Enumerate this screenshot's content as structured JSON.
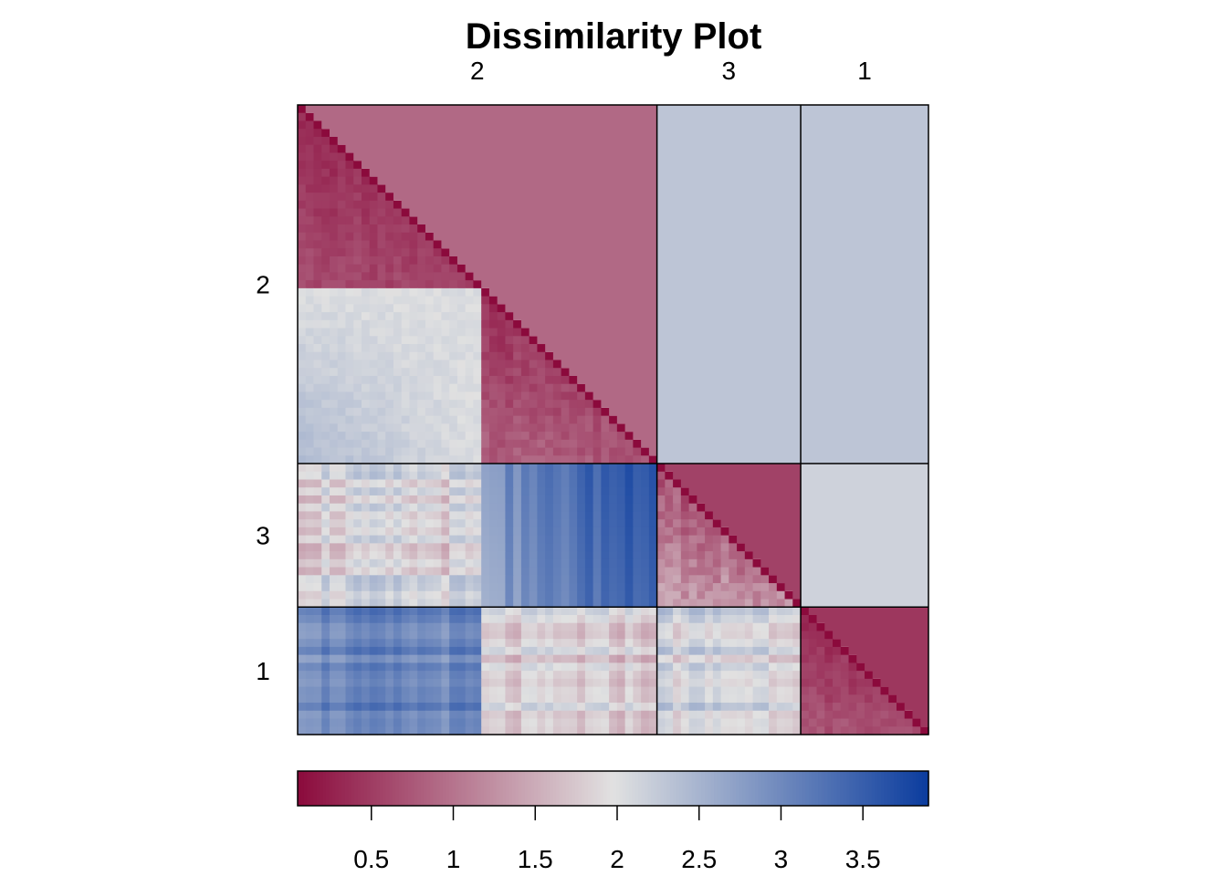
{
  "chart_data": {
    "type": "heatmap",
    "title": "Dissimilarity Plot",
    "cluster_order": [
      "2",
      "3",
      "1"
    ],
    "cluster_sizes": [
      45,
      18,
      16
    ],
    "top_labels": [
      "2",
      "3",
      "1"
    ],
    "left_labels": [
      "2",
      "3",
      "1"
    ],
    "subclusters_in_cluster_2": [
      23,
      22
    ],
    "lower_triangle_cell_estimates": {
      "2a_2a": [
        0.1,
        0.7
      ],
      "2b_2a": [
        1.6,
        2.6
      ],
      "2b_2b": [
        0.1,
        0.9
      ],
      "3_2a": [
        1.0,
        2.5
      ],
      "3_2b": [
        2.2,
        3.9
      ],
      "3_3": [
        0.1,
        1.5
      ],
      "1_2a": [
        2.4,
        3.4
      ],
      "1_2b": [
        1.0,
        2.3
      ],
      "1_3": [
        1.2,
        2.6
      ],
      "1_1": [
        0.1,
        0.8
      ]
    },
    "upper_block_means": {
      "2_2": 0.9,
      "2_3": 2.3,
      "2_1": 2.3,
      "3_3": 0.55,
      "3_1": 2.15,
      "1_1": 0.45
    },
    "color_scale": {
      "min": 0.05,
      "max": 3.9,
      "low_color": "#8B0A3C",
      "mid_color": "#E1E1E1",
      "high_color": "#0B3C9E",
      "ticks": [
        0.5,
        1,
        1.5,
        2,
        2.5,
        3,
        3.5
      ],
      "tick_labels": [
        "0.5",
        "1",
        "1.5",
        "2",
        "2.5",
        "3",
        "3.5"
      ]
    }
  }
}
